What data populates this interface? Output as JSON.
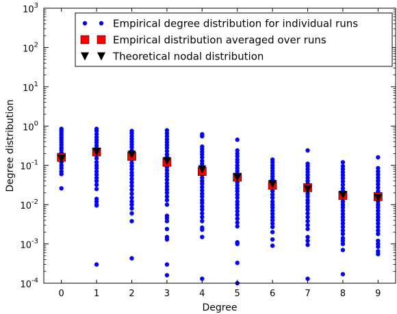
{
  "chart_data": {
    "type": "scatter",
    "xlabel": "Degree",
    "ylabel": "Degree distribution",
    "x_ticks": [
      "0",
      "1",
      "2",
      "3",
      "4",
      "5",
      "6",
      "7",
      "8",
      "9"
    ],
    "xlim": [
      -0.5,
      9.5
    ],
    "ylim": [
      0.0001,
      1000
    ],
    "yscale": "log",
    "y_ticks": [
      {
        "value": 0.0001,
        "base": "10",
        "exp": "-4"
      },
      {
        "value": 0.001,
        "base": "10",
        "exp": "-3"
      },
      {
        "value": 0.01,
        "base": "10",
        "exp": "-2"
      },
      {
        "value": 0.1,
        "base": "10",
        "exp": "-1"
      },
      {
        "value": 1,
        "base": "10",
        "exp": "0"
      },
      {
        "value": 10,
        "base": "10",
        "exp": "1"
      },
      {
        "value": 100,
        "base": "10",
        "exp": "2"
      },
      {
        "value": 1000,
        "base": "10",
        "exp": "3"
      }
    ],
    "grid": false,
    "legend_position": "top-right",
    "series": [
      {
        "name": "Empirical degree distribution for individual runs",
        "marker": "circle",
        "color": "#0000ff",
        "points": {
          "0": [
            0.85,
            0.75,
            0.65,
            0.58,
            0.5,
            0.44,
            0.38,
            0.33,
            0.28,
            0.25,
            0.21,
            0.18,
            0.15,
            0.12,
            0.1,
            0.085,
            0.07,
            0.06,
            0.026
          ],
          "1": [
            0.85,
            0.75,
            0.62,
            0.52,
            0.44,
            0.38,
            0.32,
            0.27,
            0.22,
            0.18,
            0.15,
            0.12,
            0.1,
            0.085,
            0.07,
            0.058,
            0.048,
            0.04,
            0.032,
            0.025,
            0.014,
            0.012,
            0.01,
            0.0095,
            0.0003
          ],
          "2": [
            0.75,
            0.65,
            0.55,
            0.47,
            0.4,
            0.34,
            0.29,
            0.24,
            0.2,
            0.17,
            0.14,
            0.115,
            0.095,
            0.08,
            0.065,
            0.055,
            0.045,
            0.037,
            0.03,
            0.024,
            0.019,
            0.015,
            0.012,
            0.01,
            0.008,
            0.006,
            0.0038,
            0.00043
          ],
          "3": [
            0.78,
            0.65,
            0.55,
            0.46,
            0.39,
            0.33,
            0.28,
            0.23,
            0.19,
            0.16,
            0.13,
            0.11,
            0.09,
            0.075,
            0.062,
            0.052,
            0.043,
            0.035,
            0.029,
            0.024,
            0.02,
            0.016,
            0.013,
            0.01,
            0.0052,
            0.0045,
            0.0038,
            0.0024,
            0.0015,
            0.0013,
            0.0003,
            0.00016
          ],
          "4": [
            0.62,
            0.55,
            0.3,
            0.26,
            0.22,
            0.19,
            0.16,
            0.13,
            0.11,
            0.095,
            0.08,
            0.068,
            0.057,
            0.048,
            0.04,
            0.034,
            0.028,
            0.023,
            0.019,
            0.016,
            0.013,
            0.011,
            0.009,
            0.0075,
            0.006,
            0.0048,
            0.0038,
            0.0026,
            0.0023,
            0.0015,
            0.00013
          ],
          "5": [
            0.45,
            0.24,
            0.2,
            0.17,
            0.14,
            0.12,
            0.1,
            0.085,
            0.072,
            0.061,
            0.052,
            0.044,
            0.037,
            0.031,
            0.026,
            0.022,
            0.018,
            0.015,
            0.012,
            0.01,
            0.0083,
            0.0068,
            0.0055,
            0.0044,
            0.0035,
            0.0028,
            0.0011,
            0.001,
            0.00033,
            0.0001
          ],
          "6": [
            0.14,
            0.12,
            0.1,
            0.085,
            0.072,
            0.061,
            0.052,
            0.044,
            0.037,
            0.031,
            0.026,
            0.022,
            0.018,
            0.015,
            0.012,
            0.01,
            0.0085,
            0.007,
            0.0058,
            0.0048,
            0.004,
            0.0033,
            0.0027,
            0.002,
            0.0013,
            0.0009
          ],
          "7": [
            0.24,
            0.11,
            0.095,
            0.08,
            0.068,
            0.057,
            0.048,
            0.04,
            0.034,
            0.028,
            0.023,
            0.019,
            0.016,
            0.013,
            0.011,
            0.009,
            0.0075,
            0.006,
            0.0048,
            0.0038,
            0.003,
            0.0024,
            0.0015,
            0.0012,
            0.00095,
            0.00013
          ],
          "8": [
            0.12,
            0.095,
            0.08,
            0.067,
            0.056,
            0.047,
            0.039,
            0.032,
            0.026,
            0.022,
            0.018,
            0.015,
            0.012,
            0.01,
            0.0085,
            0.007,
            0.0058,
            0.0048,
            0.004,
            0.0033,
            0.0027,
            0.0022,
            0.0018,
            0.0014,
            0.0012,
            0.001,
            0.0007,
            0.00017
          ],
          "9": [
            0.16,
            0.085,
            0.07,
            0.058,
            0.048,
            0.04,
            0.033,
            0.027,
            0.022,
            0.018,
            0.015,
            0.012,
            0.01,
            0.0085,
            0.007,
            0.0058,
            0.0048,
            0.004,
            0.0033,
            0.0027,
            0.0022,
            0.0018,
            0.0012,
            0.001,
            0.00085,
            0.00065,
            0.00055
          ]
        }
      },
      {
        "name": "Empirical distribution averaged over runs",
        "marker": "square",
        "color": "#ff0000",
        "x": [
          0,
          1,
          2,
          3,
          4,
          5,
          6,
          7,
          8,
          9
        ],
        "y": [
          0.16,
          0.22,
          0.17,
          0.12,
          0.07,
          0.05,
          0.031,
          0.027,
          0.017,
          0.016
        ]
      },
      {
        "name": "Theoretical nodal distribution",
        "marker": "triangle-down",
        "color": "#000000",
        "x": [
          0,
          1,
          2,
          3,
          4,
          5,
          6,
          7,
          8,
          9
        ],
        "y": [
          0.15,
          0.22,
          0.19,
          0.13,
          0.08,
          0.05,
          0.034,
          0.025,
          0.018,
          0.015
        ]
      }
    ]
  }
}
